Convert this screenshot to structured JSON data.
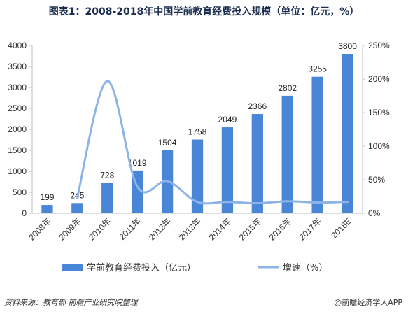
{
  "title": "图表1：2008-2018年中国学前教育经费投入规模（单位：亿元，%）",
  "source": "资料来源：教育部 前瞻产业研究院整理",
  "credit": "@前瞻经济学人APP",
  "colors": {
    "bar": "#4a86d8",
    "line": "#8cb4e8",
    "axis": "#bfbfbf"
  },
  "chart_data": {
    "type": "bar",
    "categories": [
      "2008年",
      "2009年",
      "2010年",
      "2011年",
      "2012年",
      "2013年",
      "2014年",
      "2015年",
      "2016年",
      "2017年",
      "2018E"
    ],
    "series": [
      {
        "name": "学前教育经费投入（亿元）",
        "type": "bar",
        "axis": "left",
        "values": [
          199,
          245,
          728,
          1019,
          1504,
          1758,
          2049,
          2366,
          2802,
          3255,
          3800
        ]
      },
      {
        "name": "增速（%）",
        "type": "line",
        "axis": "right",
        "values": [
          null,
          23,
          197,
          40,
          48,
          17,
          17,
          15,
          18,
          16,
          17
        ]
      }
    ],
    "y_left": {
      "ticks": [
        0,
        500,
        1000,
        1500,
        2000,
        2500,
        3000,
        3500,
        4000
      ],
      "ylim": [
        0,
        4000
      ]
    },
    "y_right": {
      "ticks": [
        "0%",
        "50%",
        "100%",
        "150%",
        "200%",
        "250%"
      ],
      "ylim": [
        0,
        250
      ]
    },
    "legend_placement": "bottom",
    "grid": false
  }
}
